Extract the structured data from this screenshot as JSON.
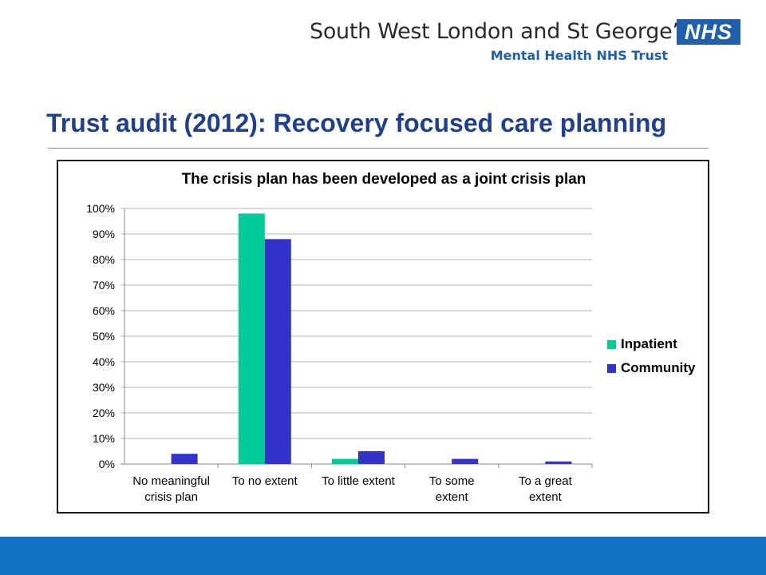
{
  "header": {
    "org_name": "South West London and St George’s",
    "org_sub": "Mental Health NHS Trust",
    "logo_text": "NHS"
  },
  "slide": {
    "title": "Trust audit (2012): Recovery focused care planning"
  },
  "colors": {
    "inpatient": "#00cc99",
    "community": "#3333cc",
    "title": "#1f3f8f",
    "footer": "#1171c4"
  },
  "chart_data": {
    "type": "bar",
    "title": "The crisis plan has been developed as a joint crisis plan",
    "categories": [
      [
        "No meaningful",
        "crisis plan"
      ],
      [
        "To no extent"
      ],
      [
        "To little extent"
      ],
      [
        "To some",
        "extent"
      ],
      [
        "To a great",
        "extent"
      ]
    ],
    "series": [
      {
        "name": "Inpatient",
        "color": "#00cc99",
        "values": [
          0,
          98,
          2,
          0,
          0
        ]
      },
      {
        "name": "Community",
        "color": "#3333cc",
        "values": [
          4,
          88,
          5,
          2,
          1
        ]
      }
    ],
    "ylim": [
      0,
      100
    ],
    "yticks": [
      "0%",
      "10%",
      "20%",
      "30%",
      "40%",
      "50%",
      "60%",
      "70%",
      "80%",
      "90%",
      "100%"
    ],
    "grid": true,
    "legend_position": "right"
  }
}
